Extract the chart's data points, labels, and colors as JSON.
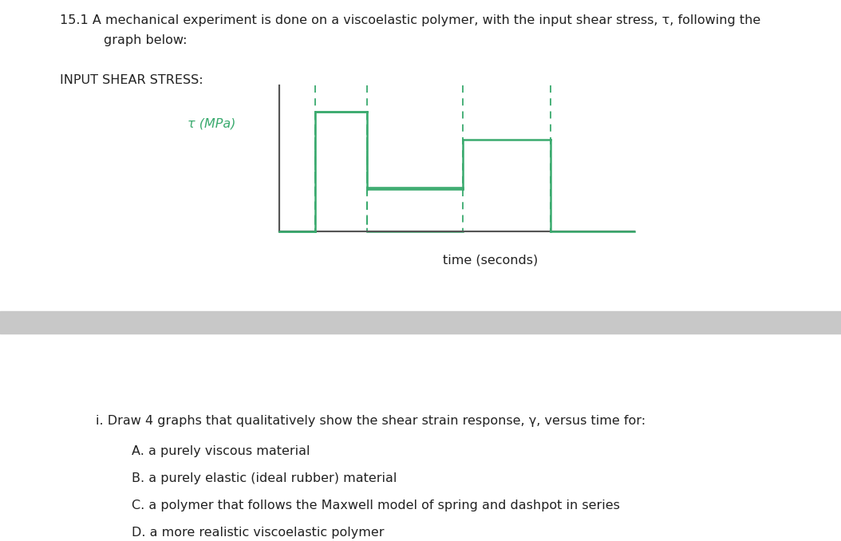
{
  "title_line1": "15.1 A mechanical experiment is done on a viscoelastic polymer, with the input shear stress, τ, following the",
  "title_line2": "graph below:",
  "input_label": "INPUT SHEAR STRESS:",
  "ylabel_text": "τ (MPa)",
  "xlabel_text": "time (seconds)",
  "graph_color": "#3aaa6e",
  "axis_color": "#555555",
  "text_color": "#222222",
  "divider_color": "#c8c8c8",
  "question_text": "i. Draw 4 graphs that qualitatively show the shear strain response, γ, versus time for:",
  "options": [
    "A. a purely viscous material",
    "B. a purely elastic (ideal rubber) material",
    "C. a polymer that follows the Maxwell model of spring and dashpot in series",
    "D. a more realistic viscoelastic polymer"
  ],
  "bg_color": "#ffffff",
  "fig_width": 10.54,
  "fig_height": 6.78,
  "dpi": 100
}
